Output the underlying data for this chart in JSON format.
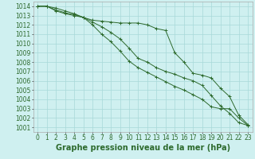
{
  "x": [
    0,
    1,
    2,
    3,
    4,
    5,
    6,
    7,
    8,
    9,
    10,
    11,
    12,
    13,
    14,
    15,
    16,
    17,
    18,
    19,
    20,
    21,
    22,
    23
  ],
  "line1": [
    1014,
    1014,
    1013.5,
    1013.2,
    1013.0,
    1012.8,
    1012.5,
    1012.4,
    1012.3,
    1012.2,
    1012.2,
    1012.2,
    1012.0,
    1011.6,
    1011.4,
    1009.0,
    1008.0,
    1006.8,
    1006.6,
    1006.3,
    1005.2,
    1004.3,
    1002.3,
    1001.3
  ],
  "line2": [
    1014,
    1014,
    1013.6,
    1013.3,
    1013.1,
    1012.8,
    1012.3,
    1011.8,
    1011.2,
    1010.5,
    1009.5,
    1008.4,
    1008.0,
    1007.4,
    1007.0,
    1006.7,
    1006.3,
    1006.0,
    1005.5,
    1004.4,
    1003.3,
    1002.5,
    1001.5,
    1001.2
  ],
  "line3": [
    1014,
    1014,
    1013.8,
    1013.5,
    1013.2,
    1012.8,
    1012.0,
    1011.0,
    1010.2,
    1009.2,
    1008.1,
    1007.4,
    1006.9,
    1006.4,
    1005.9,
    1005.4,
    1005.0,
    1004.5,
    1004.0,
    1003.2,
    1003.0,
    1003.0,
    1002.0,
    1001.2
  ],
  "bg_color": "#cff0f0",
  "grid_color": "#a8d8d8",
  "line_color": "#2d6a2d",
  "marker": "+",
  "xlabel": "Graphe pression niveau de la mer (hPa)",
  "xlabel_fontsize": 7,
  "tick_fontsize": 5.5,
  "ylim_min": 1000.5,
  "ylim_max": 1014.5,
  "xlim_min": -0.5,
  "xlim_max": 23.5,
  "yticks": [
    1001,
    1002,
    1003,
    1004,
    1005,
    1006,
    1007,
    1008,
    1009,
    1010,
    1011,
    1012,
    1013,
    1014
  ],
  "xticks": [
    0,
    1,
    2,
    3,
    4,
    5,
    6,
    7,
    8,
    9,
    10,
    11,
    12,
    13,
    14,
    15,
    16,
    17,
    18,
    19,
    20,
    21,
    22,
    23
  ]
}
